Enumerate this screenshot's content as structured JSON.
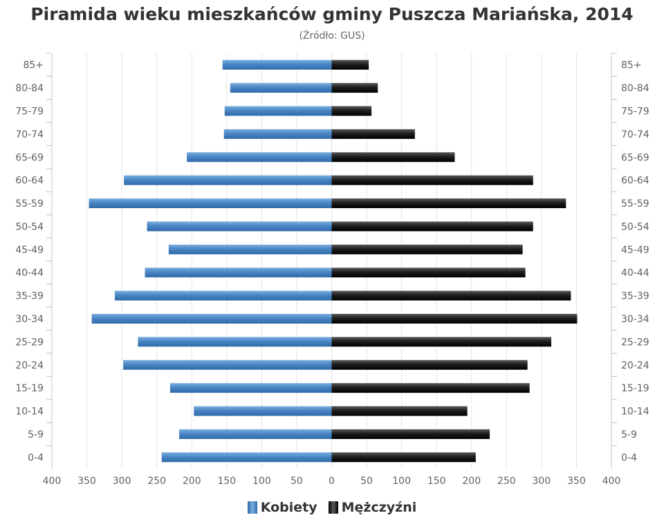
{
  "chart_data": {
    "type": "bar",
    "orientation": "horizontal-pyramid",
    "title": "Piramida wieku mieszkańców gminy Puszcza Mariańska, 2014",
    "subtitle": "(Źródło: GUS)",
    "categories": [
      "85+",
      "80-84",
      "75-79",
      "70-74",
      "65-69",
      "60-64",
      "55-59",
      "50-54",
      "45-49",
      "40-44",
      "35-39",
      "30-34",
      "25-29",
      "20-24",
      "15-19",
      "10-14",
      "5-9",
      "0-4"
    ],
    "series": [
      {
        "name": "Kobiety",
        "color": "#4a86c5",
        "values": [
          156,
          145,
          153,
          154,
          207,
          297,
          347,
          264,
          233,
          267,
          310,
          343,
          277,
          298,
          231,
          197,
          218,
          243
        ]
      },
      {
        "name": "Mężczyźni",
        "color": "#1a1a1a",
        "values": [
          53,
          66,
          57,
          119,
          176,
          288,
          335,
          288,
          273,
          277,
          342,
          351,
          314,
          280,
          283,
          194,
          226,
          206
        ]
      }
    ],
    "x_ticks": [
      "400",
      "350",
      "300",
      "250",
      "200",
      "150",
      "100",
      "50",
      "0",
      "50",
      "100",
      "150",
      "200",
      "250",
      "300",
      "350",
      "400"
    ],
    "xlim": [
      -400,
      400
    ],
    "grid": "vertical",
    "legend": "bottom-center"
  }
}
